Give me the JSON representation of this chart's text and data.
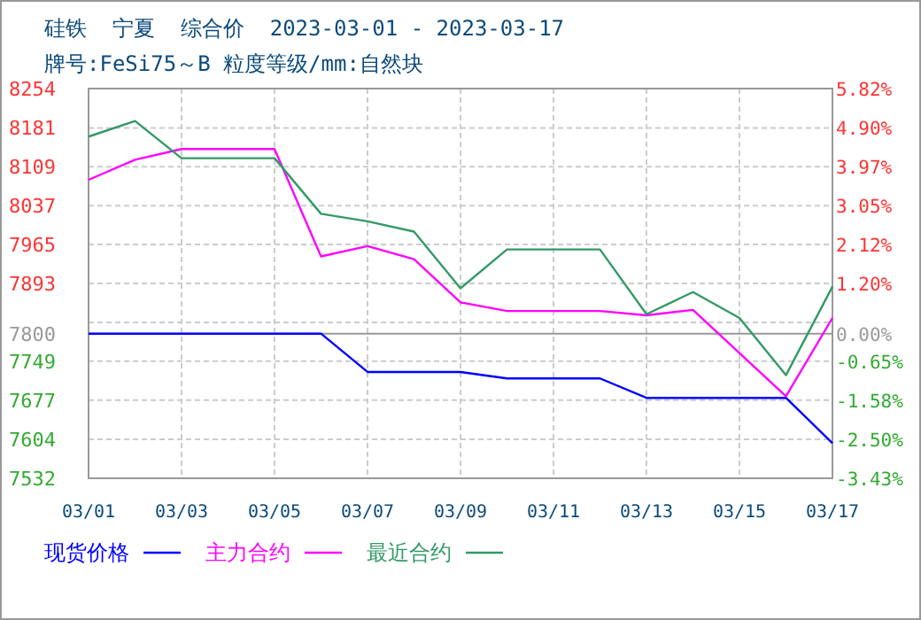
{
  "chart_data": {
    "type": "line",
    "title": "硅铁  宁夏  综合价  2023-03-01 - 2023-03-17",
    "subtitle": "牌号:FeSi75～B 粒度等级/mm:自然块",
    "categories": [
      "03/01",
      null,
      "03/03",
      null,
      "03/05",
      null,
      "03/07",
      null,
      "03/09",
      null,
      "03/11",
      null,
      "03/13",
      null,
      "03/15",
      null,
      "03/17"
    ],
    "series": [
      {
        "name": "现货价格",
        "color": "#0000ff",
        "values": [
          7800,
          7800,
          7800,
          7800,
          7800,
          7800,
          7729,
          7729,
          7729,
          7717,
          7717,
          7717,
          7681,
          7681,
          7681,
          7681,
          7597
        ]
      },
      {
        "name": "主力合约",
        "color": "#ff00ff",
        "values": [
          8085,
          8122,
          8142,
          8142,
          8142,
          7943,
          7962,
          7938,
          7858,
          7842,
          7842,
          7842,
          7834,
          7844,
          7764,
          7684,
          7829
        ]
      },
      {
        "name": "最近合约",
        "color": "#339966",
        "values": [
          8165,
          8194,
          8125,
          8125,
          8125,
          8022,
          8008,
          7989,
          7884,
          7956,
          7956,
          7956,
          7836,
          7877,
          7829,
          7723,
          7887
        ]
      }
    ],
    "ylim": [
      7532,
      8254
    ],
    "yticks": [
      8254,
      8181,
      8109,
      8037,
      7965,
      7893,
      {
        "value": 7821,
        "label": null
      },
      7800,
      7749,
      7677,
      7604,
      7532
    ],
    "y2lim": [
      -3.43,
      5.82
    ],
    "y2ticks": [
      {
        "value": 5.82,
        "label": "5.82%"
      },
      {
        "value": 4.9,
        "label": "4.90%"
      },
      {
        "value": 3.97,
        "label": "3.97%"
      },
      {
        "value": 3.05,
        "label": "3.05%"
      },
      {
        "value": 2.12,
        "label": "2.12%"
      },
      {
        "value": 1.2,
        "label": "1.20%"
      },
      {
        "value": 0,
        "label": "0.00%"
      },
      {
        "value": -0.65,
        "label": "-0.65%"
      },
      {
        "value": -1.58,
        "label": "-1.58%"
      },
      {
        "value": -2.5,
        "label": "-2.50%"
      },
      {
        "value": -3.43,
        "label": "-3.43%"
      }
    ],
    "ref_lines": [
      {
        "axis": "y",
        "value": 7800,
        "color": "#999999"
      }
    ],
    "grid": true,
    "legend": "bottom",
    "marker": "none",
    "line_style": "solid"
  }
}
